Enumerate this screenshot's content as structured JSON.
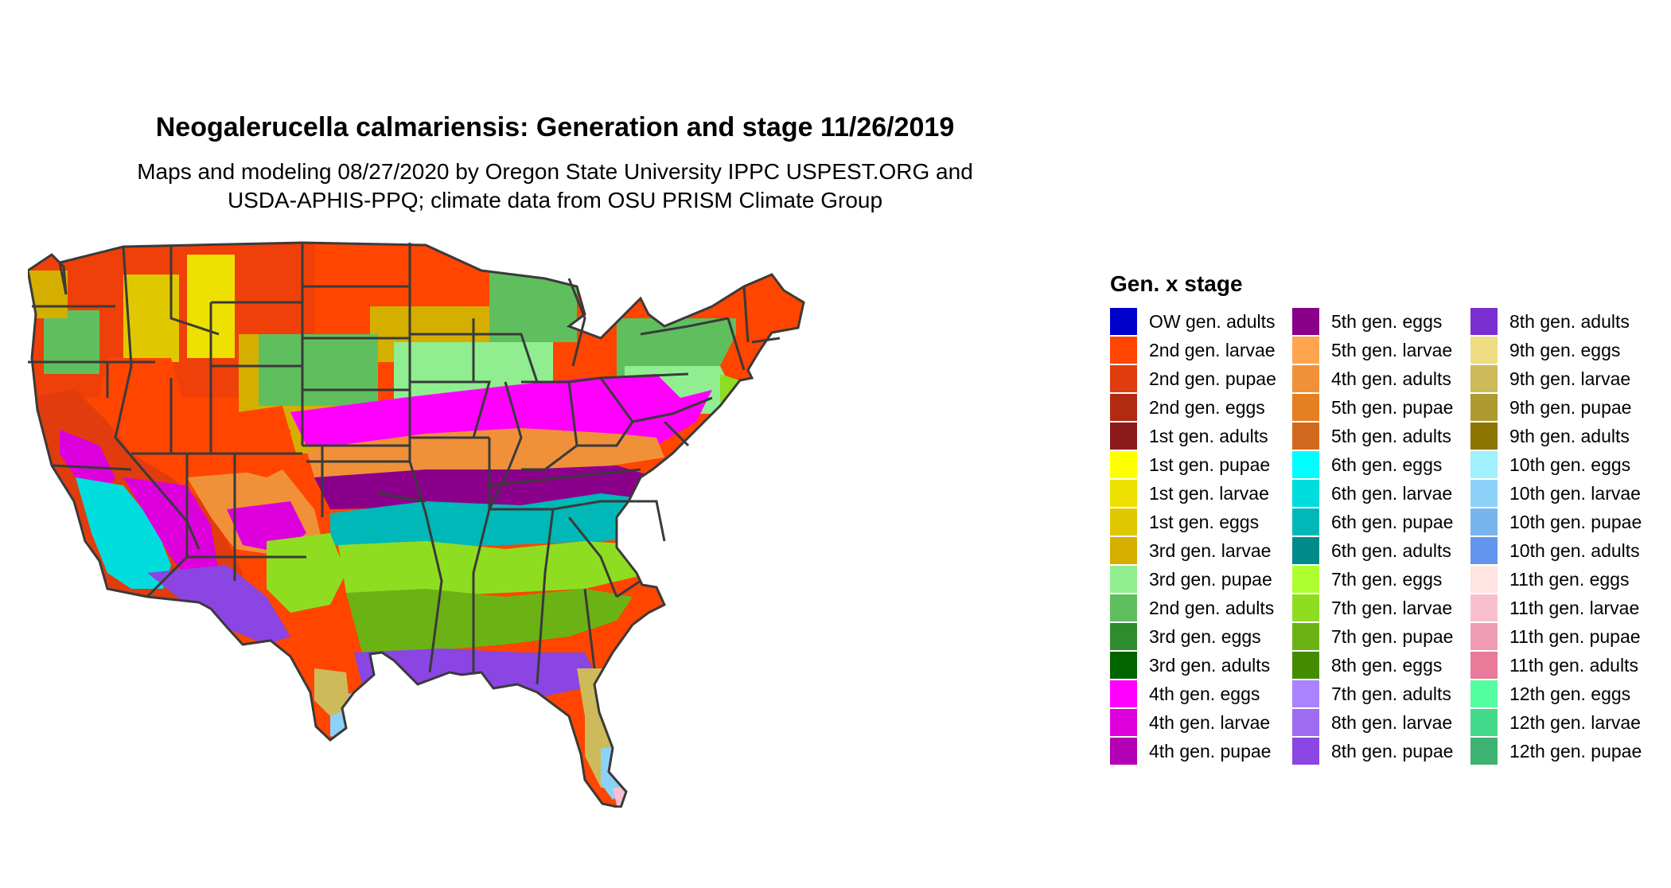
{
  "title": "Neogalerucella calmariensis: Generation and stage 11/26/2019",
  "subtitle_lines": [
    "Maps and modeling 08/27/2020 by Oregon State University IPPC USPEST.ORG and",
    "USDA-APHIS-PPQ; climate data from OSU PRISM Climate Group"
  ],
  "legend": {
    "title": "Gen. x stage",
    "columns": [
      [
        {
          "label": "OW gen. adults",
          "color": "#0000CD"
        },
        {
          "label": "2nd gen. larvae",
          "color": "#FF4500"
        },
        {
          "label": "2nd gen. pupae",
          "color": "#E03C0E"
        },
        {
          "label": "2nd gen. eggs",
          "color": "#B22A12"
        },
        {
          "label": "1st gen. adults",
          "color": "#8B1A1A"
        },
        {
          "label": "1st gen. pupae",
          "color": "#FFFF00"
        },
        {
          "label": "1st gen. larvae",
          "color": "#EEE000"
        },
        {
          "label": "1st gen. eggs",
          "color": "#E0C800"
        },
        {
          "label": "3rd gen. larvae",
          "color": "#D4AF00"
        },
        {
          "label": "3rd gen. pupae",
          "color": "#90EE90"
        },
        {
          "label": "2nd gen. adults",
          "color": "#5FBF5F"
        },
        {
          "label": "3rd gen. eggs",
          "color": "#2E8B2E"
        },
        {
          "label": "3rd gen. adults",
          "color": "#006400"
        },
        {
          "label": "4th gen. eggs",
          "color": "#FF00FF"
        },
        {
          "label": "4th gen. larvae",
          "color": "#DD00DD"
        },
        {
          "label": "4th gen. pupae",
          "color": "#B400B4"
        }
      ],
      [
        {
          "label": "5th gen. eggs",
          "color": "#8B008B"
        },
        {
          "label": "5th gen. larvae",
          "color": "#FFA54F"
        },
        {
          "label": "4th gen. adults",
          "color": "#F0913A"
        },
        {
          "label": "5th gen. pupae",
          "color": "#E67E22"
        },
        {
          "label": "5th gen. adults",
          "color": "#D2691E"
        },
        {
          "label": "6th gen. eggs",
          "color": "#00FFFF"
        },
        {
          "label": "6th gen. larvae",
          "color": "#00DDDD"
        },
        {
          "label": "6th gen. pupae",
          "color": "#00B8B8"
        },
        {
          "label": "6th gen. adults",
          "color": "#008B8B"
        },
        {
          "label": "7th gen. eggs",
          "color": "#ADFF2F"
        },
        {
          "label": "7th gen. larvae",
          "color": "#8FDD20"
        },
        {
          "label": "7th gen. pupae",
          "color": "#6BB315"
        },
        {
          "label": "8th gen. eggs",
          "color": "#458B00"
        },
        {
          "label": "7th gen. adults",
          "color": "#AB82FF"
        },
        {
          "label": "8th gen. larvae",
          "color": "#9F6BF0"
        },
        {
          "label": "8th gen. pupae",
          "color": "#8A45E3"
        }
      ],
      [
        {
          "label": "8th gen. adults",
          "color": "#7B2FD0"
        },
        {
          "label": "9th gen. eggs",
          "color": "#EEDD82"
        },
        {
          "label": "9th gen. larvae",
          "color": "#CDBA5A"
        },
        {
          "label": "9th gen. pupae",
          "color": "#AD9A30"
        },
        {
          "label": "9th gen. adults",
          "color": "#8B7500"
        },
        {
          "label": "10th gen. eggs",
          "color": "#A0F0FF"
        },
        {
          "label": "10th gen. larvae",
          "color": "#8CD2F8"
        },
        {
          "label": "10th gen. pupae",
          "color": "#78B4F0"
        },
        {
          "label": "10th gen. adults",
          "color": "#6495ED"
        },
        {
          "label": "11th gen. eggs",
          "color": "#FFE4E1"
        },
        {
          "label": "11th gen. larvae",
          "color": "#F8C0CE"
        },
        {
          "label": "11th gen. pupae",
          "color": "#F09CB4"
        },
        {
          "label": "11th gen. adults",
          "color": "#E87A9A"
        },
        {
          "label": "12th gen. eggs",
          "color": "#54FF9F"
        },
        {
          "label": "12th gen. larvae",
          "color": "#43D98A"
        },
        {
          "label": "12th gen. pupae",
          "color": "#3CB371"
        }
      ]
    ]
  }
}
